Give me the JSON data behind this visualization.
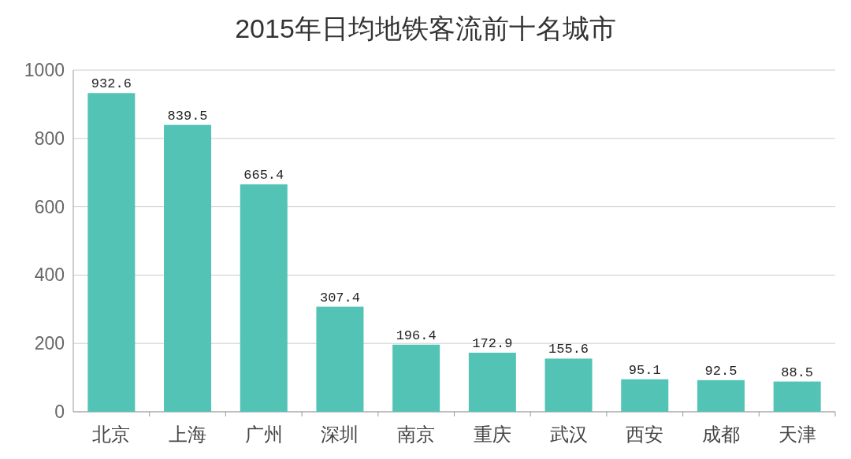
{
  "chart_data": {
    "type": "bar",
    "title": "2015年日均地铁客流前十名城市",
    "categories": [
      "北京",
      "上海",
      "广州",
      "深圳",
      "南京",
      "重庆",
      "武汉",
      "西安",
      "成都",
      "天津"
    ],
    "values": [
      932.6,
      839.5,
      665.4,
      307.4,
      196.4,
      172.9,
      155.6,
      95.1,
      92.5,
      88.5
    ],
    "color": "#52c3b4",
    "ylim": [
      0,
      1000
    ],
    "yticks": [
      0,
      200,
      400,
      600,
      800,
      1000
    ],
    "grid": "y",
    "data_labels": true
  }
}
